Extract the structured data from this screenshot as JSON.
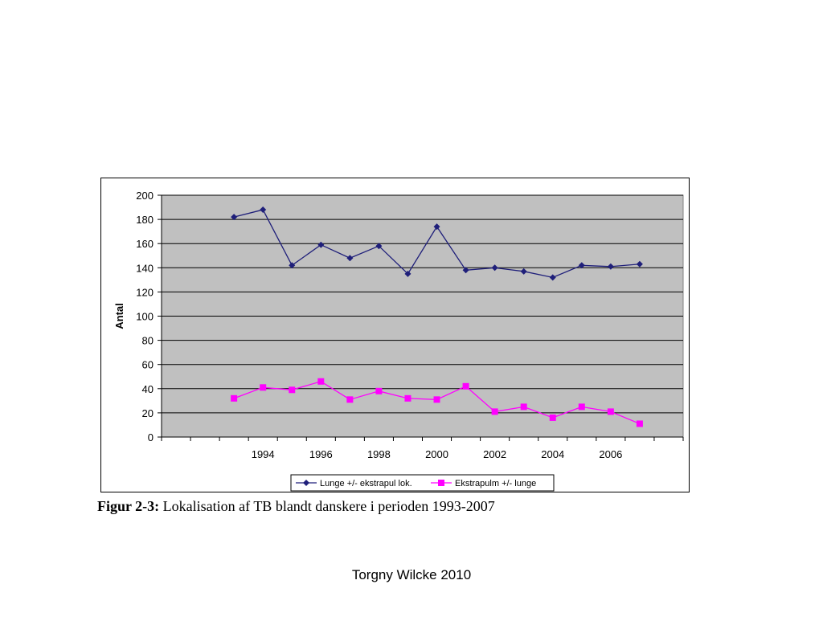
{
  "chart_data": {
    "type": "line",
    "title": "",
    "xlabel": "",
    "ylabel": "Antal",
    "x": [
      1993,
      1994,
      1995,
      1996,
      1997,
      1998,
      1999,
      2000,
      2001,
      2002,
      2003,
      2004,
      2005,
      2006,
      2007
    ],
    "xticks": [
      "1994",
      "1996",
      "1998",
      "2000",
      "2002",
      "2004",
      "2006"
    ],
    "yticks": [
      0,
      20,
      40,
      60,
      80,
      100,
      120,
      140,
      160,
      180,
      200
    ],
    "ylim": [
      0,
      200
    ],
    "grid": true,
    "legend_position": "bottom",
    "series": [
      {
        "name": "Lunge +/- ekstrapul lok.",
        "color": "#1f1f7a",
        "marker": "diamond",
        "values": [
          182,
          188,
          142,
          159,
          148,
          158,
          135,
          174,
          138,
          140,
          137,
          132,
          142,
          141,
          143
        ]
      },
      {
        "name": "Ekstrapulm +/- lunge",
        "color": "#ff00ff",
        "marker": "square",
        "values": [
          32,
          41,
          39,
          46,
          31,
          38,
          32,
          31,
          42,
          21,
          25,
          16,
          25,
          21,
          11
        ]
      }
    ]
  },
  "caption": {
    "label": "Figur 2-3:",
    "text": "Lokalisation af TB blandt danskere i perioden 1993-2007"
  },
  "footer": {
    "author": "Torgny Wilcke 2010"
  },
  "colors": {
    "plot_background": "#c0c0c0",
    "gridline": "#000000"
  }
}
